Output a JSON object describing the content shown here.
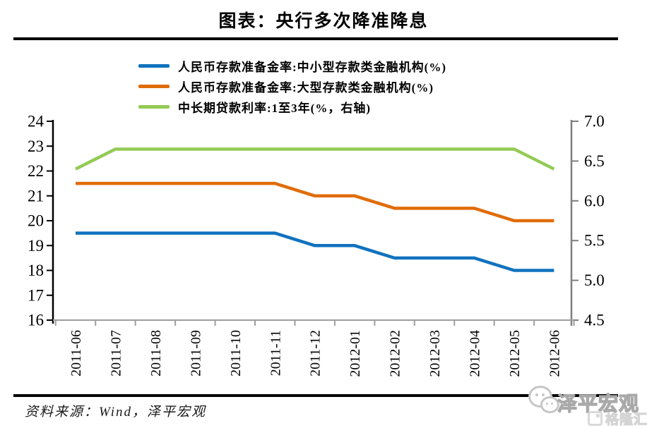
{
  "header": {
    "title": "图表：央行多次降准降息"
  },
  "chart_data": {
    "type": "line",
    "title": "图表：央行多次降准降息",
    "legend_position": "top",
    "grid": false,
    "categories": [
      "2011-06",
      "2011-07",
      "2011-08",
      "2011-09",
      "2011-10",
      "2011-11",
      "2011-12",
      "2012-01",
      "2012-02",
      "2012-03",
      "2012-04",
      "2012-05",
      "2012-06"
    ],
    "series": [
      {
        "name": "人民币存款准备金率:中小型存款类金融机构(%)",
        "axis": "left",
        "color": "#1072BE",
        "values": [
          19.5,
          19.5,
          19.5,
          19.5,
          19.5,
          19.5,
          19.0,
          19.0,
          18.5,
          18.5,
          18.5,
          18.0,
          18.0
        ]
      },
      {
        "name": "人民币存款准备金率:大型存款类金融机构(%)",
        "axis": "left",
        "color": "#E06C09",
        "values": [
          21.5,
          21.5,
          21.5,
          21.5,
          21.5,
          21.5,
          21.0,
          21.0,
          20.5,
          20.5,
          20.5,
          20.0,
          20.0
        ]
      },
      {
        "name": "中长期贷款利率:1至3年(%，右轴)",
        "axis": "right",
        "color": "#93CB55",
        "values": [
          6.4,
          6.65,
          6.65,
          6.65,
          6.65,
          6.65,
          6.65,
          6.65,
          6.65,
          6.65,
          6.65,
          6.65,
          6.4
        ]
      }
    ],
    "left_axis": {
      "min": 16,
      "max": 24,
      "ticks": [
        "24",
        "23",
        "22",
        "21",
        "20",
        "19",
        "18",
        "17",
        "16"
      ],
      "color": "#000000"
    },
    "right_axis": {
      "min": 4.5,
      "max": 7.0,
      "ticks": [
        "7.0",
        "6.5",
        "6.0",
        "5.5",
        "5.0",
        "4.5"
      ],
      "color": "#7f7f7f"
    },
    "x_axis": {
      "color": "#9e9e9e"
    }
  },
  "footer": {
    "source": "资料来源：Wind，泽平宏观",
    "watermark_text": "泽平宏观",
    "logo_text": "格隆汇"
  }
}
